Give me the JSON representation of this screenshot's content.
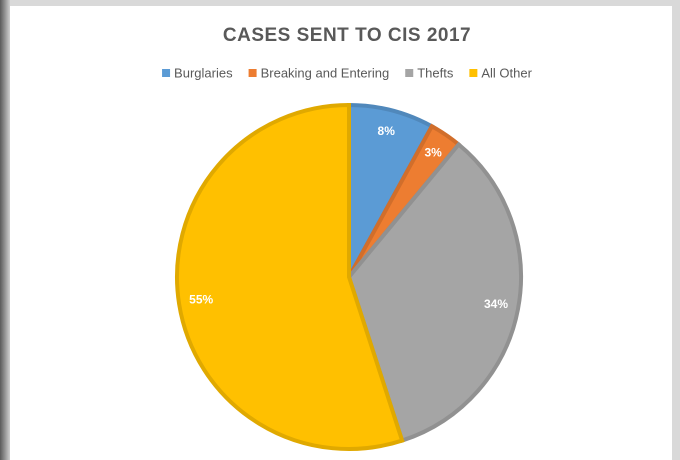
{
  "chart_data": {
    "type": "pie",
    "title": "CASES SENT TO CIS 2017",
    "categories": [
      "Burglaries",
      "Breaking and Entering",
      "Thefts",
      "All Other"
    ],
    "values": [
      8,
      3,
      34,
      55
    ],
    "value_labels": [
      "8%",
      "3%",
      "34%",
      "55%"
    ],
    "colors": [
      "#5b9bd5",
      "#ed7d31",
      "#a5a5a5",
      "#ffc000"
    ],
    "legend": "top"
  }
}
